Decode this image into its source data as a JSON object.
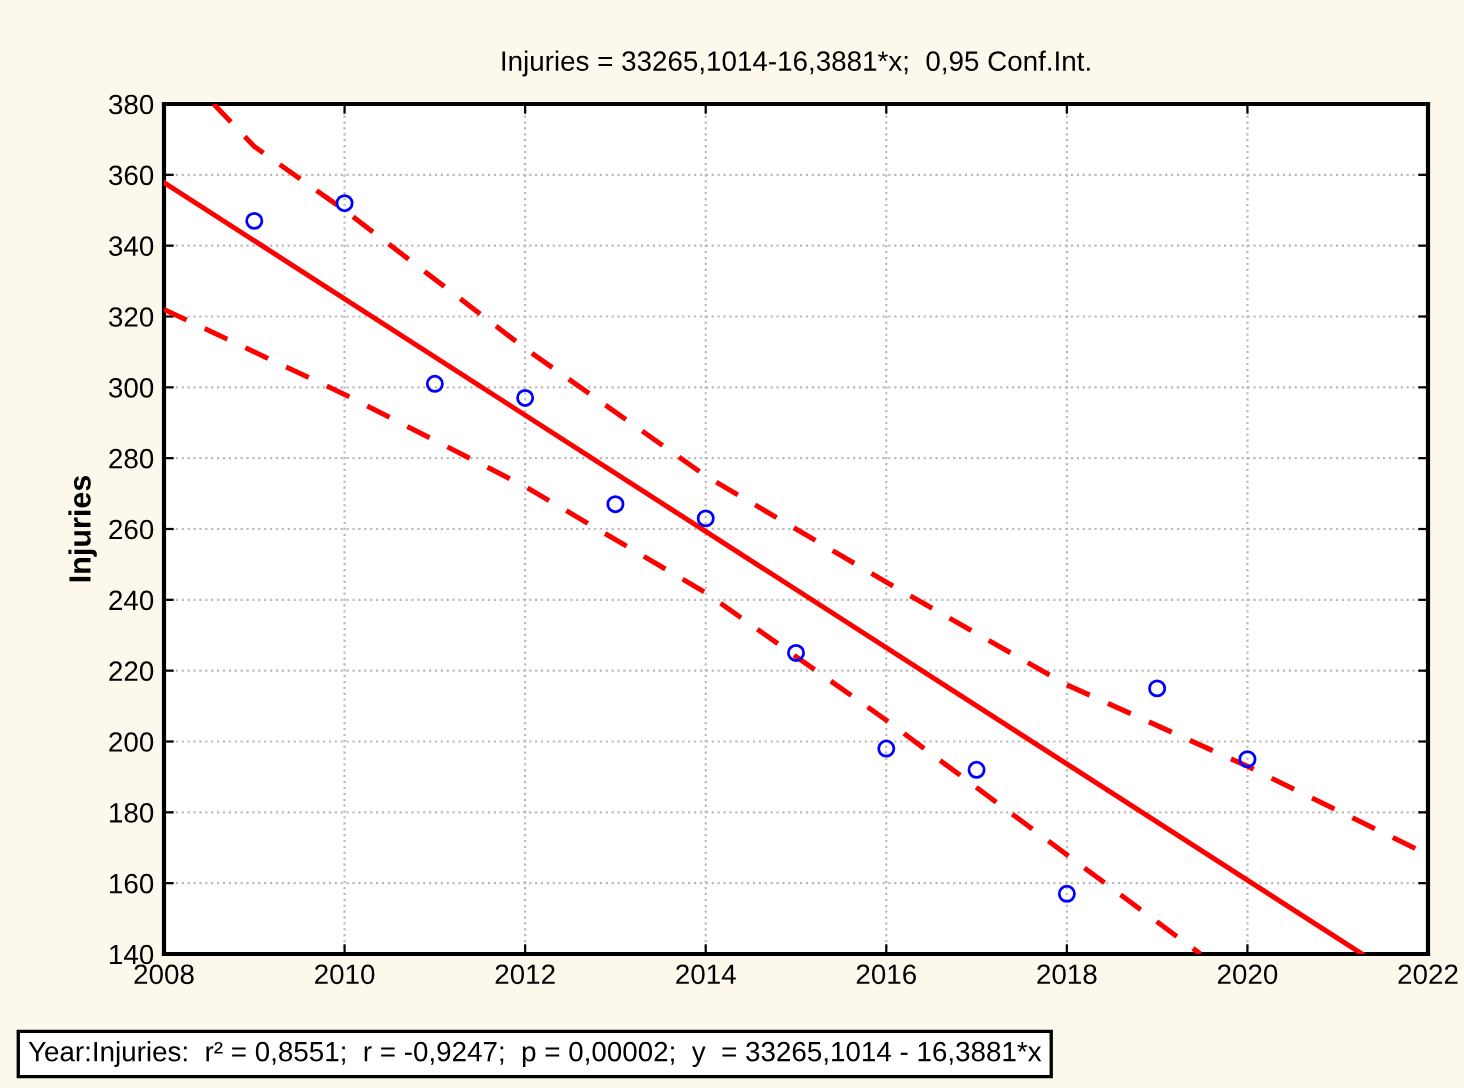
{
  "chart_data": {
    "type": "scatter",
    "title": "Injuries = 33265,1014-16,3881*x;  0,95 Conf.Int.",
    "ylabel": "Injuries",
    "xlim": [
      2008,
      2022
    ],
    "xticks": [
      2008,
      2010,
      2012,
      2014,
      2016,
      2018,
      2020,
      2022
    ],
    "ylim": [
      140,
      380
    ],
    "yticks": [
      140,
      160,
      180,
      200,
      220,
      240,
      260,
      280,
      300,
      320,
      340,
      360,
      380
    ],
    "grid": true,
    "legend": false,
    "annotations": [
      "Year:Injuries:  r² = 0,8551;  r = -0,9247;  p = 0,00002;  y  = 33265,1014 - 16,3881*x"
    ],
    "series": [
      {
        "color": "#0000ff",
        "marker": "circle",
        "x": [
          2009,
          2010,
          2011,
          2012,
          2013,
          2014,
          2015,
          2016,
          2017,
          2018,
          2019,
          2020
        ],
        "values": [
          347,
          352,
          301,
          297,
          267,
          263,
          225,
          198,
          192,
          157,
          215,
          195
        ]
      },
      {
        "type": "line",
        "color": "#ff0000",
        "line_style": "solid",
        "x": [
          2008,
          2021.27
        ],
        "values": [
          357.8,
          140
        ]
      },
      {
        "type": "line",
        "color": "#ff0000",
        "line_style": "dashed",
        "x": [
          2008.55,
          2009,
          2010,
          2012,
          2014,
          2016,
          2018,
          2020,
          2022
        ],
        "values": [
          380,
          368,
          350,
          311,
          275,
          245,
          216,
          193,
          168
        ]
      },
      {
        "type": "line",
        "color": "#ff0000",
        "line_style": "dashed",
        "x": [
          2008,
          2010,
          2012,
          2014,
          2016,
          2018,
          2019.48
        ],
        "values": [
          322,
          298,
          272,
          242,
          206,
          168,
          140
        ]
      }
    ]
  }
}
